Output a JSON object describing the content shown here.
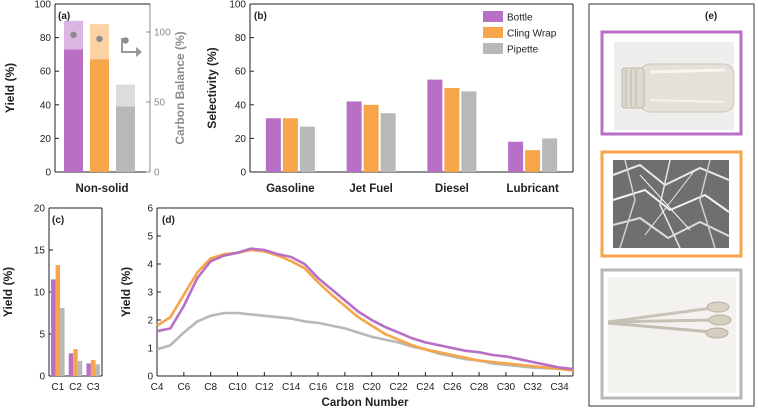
{
  "colors": {
    "bottle": "#b86fc6",
    "cling": "#f7a54a",
    "pipette": "#b8b8b8",
    "bottle_light": "#dbb6e2",
    "cling_light": "#fbd2a4",
    "pipette_light": "#dcdcdc",
    "dot": "#8c8c8c",
    "axis_gray": "#8c8c8c"
  },
  "chart_data": [
    {
      "panel": "(a)",
      "type": "bar",
      "categories": [
        "Non-solid"
      ],
      "xlabel": "Non-solid",
      "ylabel": "Yield (%)",
      "y2label": "Carbon Balance (%)",
      "ylim": [
        0,
        100
      ],
      "y2lim": [
        0,
        120
      ],
      "yticks": [
        0,
        20,
        40,
        60,
        80,
        100
      ],
      "y2ticks": [
        0,
        50,
        100
      ],
      "series": [
        {
          "name": "Bottle",
          "yield": 73,
          "upper": 90,
          "carbon_balance": 98
        },
        {
          "name": "Cling Wrap",
          "yield": 67,
          "upper": 88,
          "carbon_balance": 95
        },
        {
          "name": "Pipette",
          "yield": 39,
          "upper": 52,
          "carbon_balance": 94
        }
      ]
    },
    {
      "panel": "(b)",
      "type": "bar",
      "categories": [
        "Gasoline",
        "Jet Fuel",
        "Diesel",
        "Lubricant"
      ],
      "ylabel": "Selectivity (%)",
      "ylim": [
        0,
        100
      ],
      "yticks": [
        0,
        20,
        40,
        60,
        80,
        100
      ],
      "legend": [
        "Bottle",
        "Cling Wrap",
        "Pipette"
      ],
      "series": [
        {
          "name": "Bottle",
          "values": [
            32,
            42,
            55,
            18
          ]
        },
        {
          "name": "Cling Wrap",
          "values": [
            32,
            40,
            50,
            13
          ]
        },
        {
          "name": "Pipette",
          "values": [
            27,
            35,
            48,
            20
          ]
        }
      ]
    },
    {
      "panel": "(c)",
      "type": "bar",
      "categories": [
        "C1",
        "C2",
        "C3"
      ],
      "ylabel": "Yield (%)",
      "ylim": [
        0,
        20
      ],
      "yticks": [
        0,
        5,
        10,
        15,
        20
      ],
      "series": [
        {
          "name": "Bottle",
          "values": [
            11.5,
            2.7,
            1.5
          ]
        },
        {
          "name": "Cling Wrap",
          "values": [
            13.2,
            3.2,
            1.9
          ]
        },
        {
          "name": "Pipette",
          "values": [
            8.1,
            1.8,
            1.4
          ]
        }
      ]
    },
    {
      "panel": "(d)",
      "type": "line",
      "xlabel": "Carbon Number",
      "ylabel": "Yield (%)",
      "xlim": [
        4,
        35
      ],
      "ylim": [
        0,
        6
      ],
      "yticks": [
        0,
        1,
        2,
        3,
        4,
        5,
        6
      ],
      "xticklabels": [
        "C4",
        "C6",
        "C8",
        "C10",
        "C12",
        "C14",
        "C16",
        "C18",
        "C20",
        "C22",
        "C24",
        "C26",
        "C28",
        "C30",
        "C32",
        "C34"
      ],
      "xtickvalues": [
        4,
        6,
        8,
        10,
        12,
        14,
        16,
        18,
        20,
        22,
        24,
        26,
        28,
        30,
        32,
        34
      ],
      "x": [
        4,
        5,
        6,
        7,
        8,
        9,
        10,
        11,
        12,
        13,
        14,
        15,
        16,
        17,
        18,
        19,
        20,
        21,
        22,
        23,
        24,
        25,
        26,
        27,
        28,
        29,
        30,
        31,
        32,
        33,
        34,
        35
      ],
      "series": [
        {
          "name": "Bottle",
          "values": [
            1.6,
            1.7,
            2.5,
            3.5,
            4.1,
            4.3,
            4.4,
            4.55,
            4.5,
            4.35,
            4.25,
            4.0,
            3.5,
            3.1,
            2.7,
            2.3,
            2.0,
            1.75,
            1.55,
            1.35,
            1.2,
            1.1,
            1.0,
            0.9,
            0.85,
            0.75,
            0.7,
            0.6,
            0.5,
            0.4,
            0.3,
            0.25
          ]
        },
        {
          "name": "Cling Wrap",
          "values": [
            1.8,
            2.1,
            2.9,
            3.7,
            4.2,
            4.35,
            4.4,
            4.5,
            4.45,
            4.3,
            4.1,
            3.85,
            3.35,
            2.9,
            2.5,
            2.1,
            1.8,
            1.5,
            1.3,
            1.1,
            0.95,
            0.85,
            0.75,
            0.65,
            0.55,
            0.5,
            0.45,
            0.4,
            0.35,
            0.3,
            0.25,
            0.2
          ]
        },
        {
          "name": "Pipette",
          "values": [
            0.95,
            1.1,
            1.55,
            1.95,
            2.15,
            2.25,
            2.25,
            2.2,
            2.15,
            2.1,
            2.05,
            1.95,
            1.9,
            1.8,
            1.7,
            1.55,
            1.4,
            1.3,
            1.2,
            1.05,
            0.95,
            0.8,
            0.7,
            0.6,
            0.55,
            0.45,
            0.4,
            0.35,
            0.3,
            0.28,
            0.25,
            0.2
          ]
        }
      ]
    }
  ],
  "panel_e": {
    "label": "(e)",
    "items": [
      {
        "name": "Bottle",
        "color": "#b86fc6"
      },
      {
        "name": "Cling Wrap",
        "color": "#f7a54a"
      },
      {
        "name": "Pipette",
        "color": "#b8b8b8"
      }
    ]
  }
}
